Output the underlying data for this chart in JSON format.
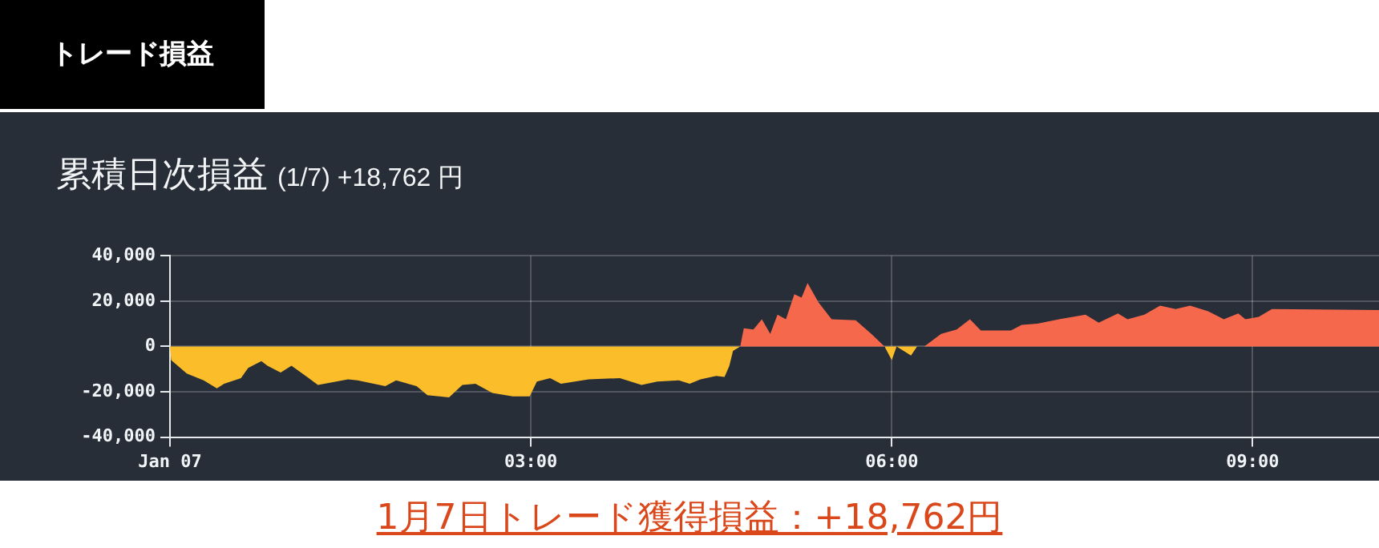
{
  "chart_data": {
    "type": "area",
    "title": "累積日次損益",
    "subtitle": "(1/7) +18,762 円",
    "annotations": [
      "トレード損益",
      "1月7日トレード獲得損益：+18,762円"
    ],
    "xlim": [
      0,
      10.05
    ],
    "xticks": [
      {
        "value": 0,
        "label": "Jan 07"
      },
      {
        "value": 3,
        "label": "03:00"
      },
      {
        "value": 6,
        "label": "06:00"
      },
      {
        "value": 9,
        "label": "09:00"
      }
    ],
    "ylim": [
      -40000,
      40000
    ],
    "yticks": [
      {
        "value": -40000,
        "label": "-40,000"
      },
      {
        "value": -20000,
        "label": "-20,000"
      },
      {
        "value": 0,
        "label": "0"
      },
      {
        "value": 20000,
        "label": "20,000"
      },
      {
        "value": 40000,
        "label": "40,000"
      }
    ],
    "grid": true,
    "legend": false,
    "series": [
      {
        "color": "#fbbd2a",
        "x": [
          0,
          0.01,
          0.14,
          0.28,
          0.39,
          0.45,
          0.59,
          0.65,
          0.76,
          0.81,
          0.92,
          1.01,
          1.14,
          1.23,
          1.48,
          1.56,
          1.79,
          1.88,
          2.05,
          2.14,
          2.32,
          2.43,
          2.54,
          2.68,
          2.85,
          2.99,
          3.05,
          3.16,
          3.25,
          3.48,
          3.74,
          3.92,
          4.05,
          4.23,
          4.32,
          4.41,
          4.54,
          4.61,
          4.65,
          4.68,
          4.74,
          5.3,
          5.94,
          6.0,
          6.04,
          6.16,
          6.21,
          6.27
        ],
        "values": [
          0,
          -6000,
          -12000,
          -15000,
          -18500,
          -16500,
          -14000,
          -9500,
          -6500,
          -8500,
          -11500,
          -8500,
          -13500,
          -17000,
          -14500,
          -15000,
          -17500,
          -15000,
          -17500,
          -21500,
          -22500,
          -17000,
          -16500,
          -20500,
          -22000,
          -22000,
          -15500,
          -14000,
          -16500,
          -14500,
          -14000,
          -17000,
          -15500,
          -15000,
          -16500,
          -14500,
          -13000,
          -13500,
          -8500,
          -2000,
          0,
          null,
          0,
          -6000,
          0,
          -4000,
          0,
          0
        ]
      },
      {
        "color": "#f6684c",
        "x": [
          4.74,
          4.77,
          4.85,
          4.92,
          4.99,
          5.05,
          5.12,
          5.19,
          5.25,
          5.3,
          5.39,
          5.5,
          5.7,
          5.83,
          5.94,
          6.1,
          6.27,
          6.41,
          6.54,
          6.65,
          6.74,
          6.88,
          6.99,
          7.08,
          7.21,
          7.39,
          7.61,
          7.72,
          7.88,
          7.96,
          8.1,
          8.23,
          8.36,
          8.48,
          8.63,
          8.76,
          8.88,
          8.94,
          9.05,
          9.16,
          10.05
        ],
        "values": [
          0,
          8000,
          7500,
          12000,
          5500,
          14000,
          12000,
          23000,
          21500,
          28000,
          19500,
          12000,
          11500,
          5500,
          0,
          null,
          0,
          5500,
          7500,
          12000,
          7000,
          7000,
          7000,
          9500,
          10000,
          12000,
          14000,
          10500,
          14500,
          12000,
          14000,
          18000,
          16500,
          18000,
          15500,
          12000,
          14500,
          12000,
          13000,
          16500,
          16000
        ]
      }
    ]
  }
}
